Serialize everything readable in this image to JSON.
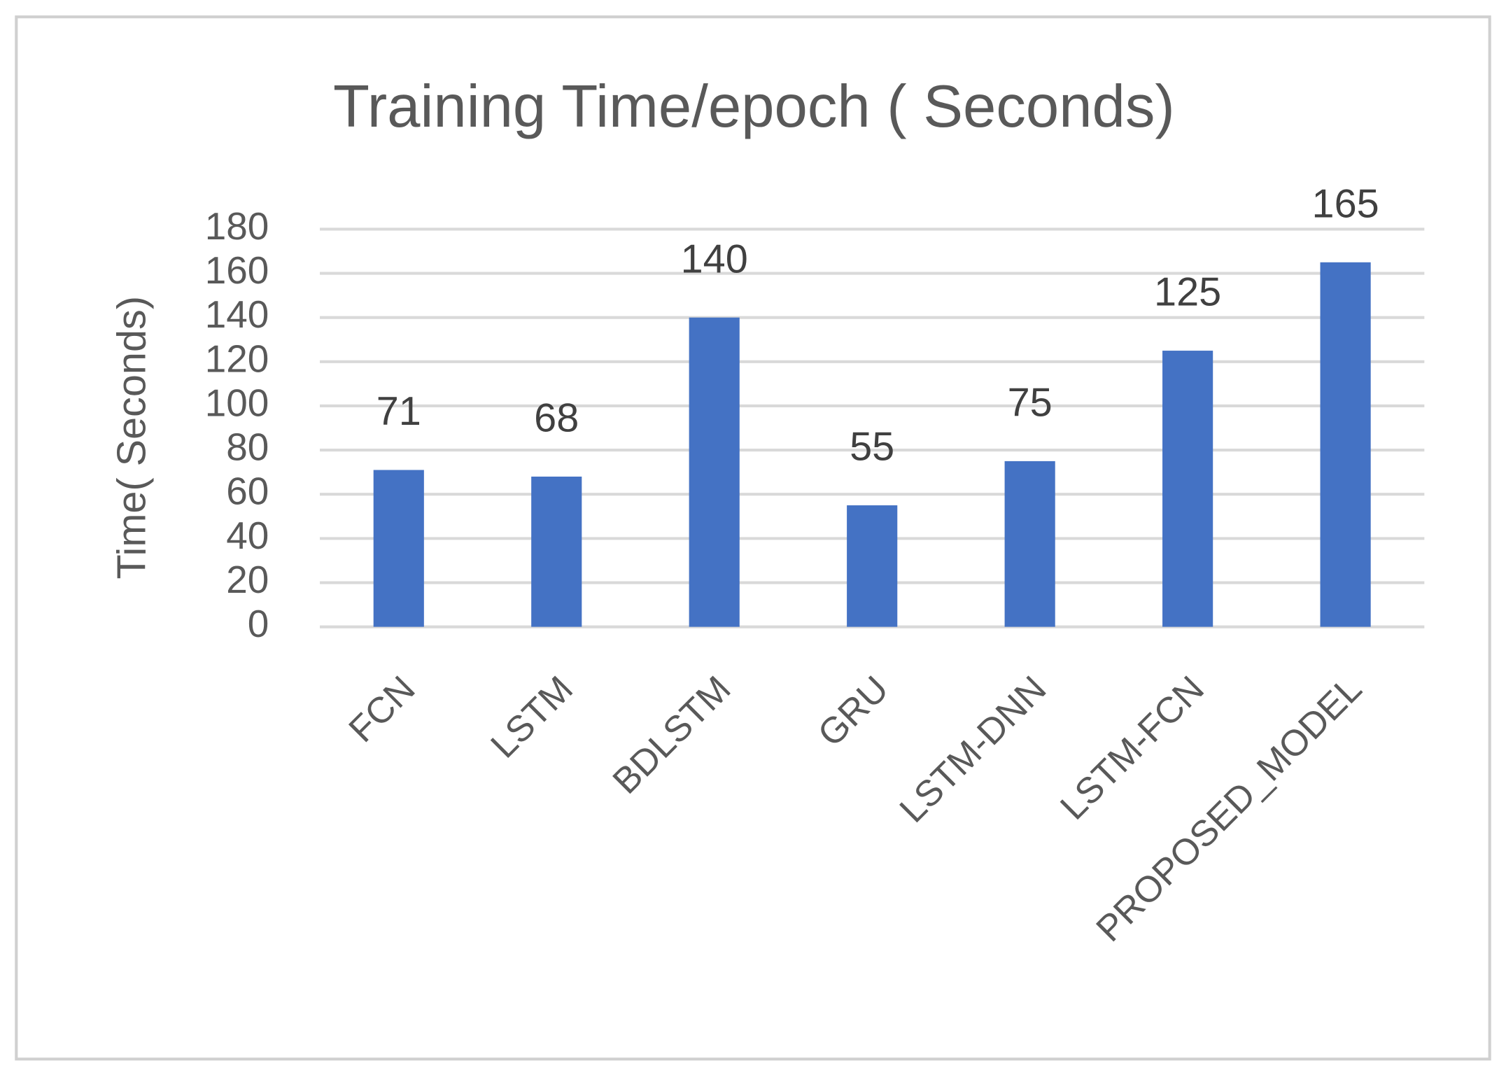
{
  "chart_data": {
    "type": "bar",
    "title": "Training Time/epoch ( Seconds)",
    "y_label": "Time( Seconds)",
    "categories": [
      "FCN",
      "LSTM",
      "BDLSTM",
      "GRU",
      "LSTM-DNN",
      "LSTM-FCN",
      "PROPOSED_MODEL"
    ],
    "values": [
      71,
      68,
      140,
      55,
      75,
      125,
      165
    ],
    "color": "#4472c4",
    "ylim": [
      0,
      180
    ],
    "yticks": [
      0,
      20,
      40,
      60,
      80,
      100,
      120,
      140,
      160,
      180
    ],
    "grid": true
  }
}
